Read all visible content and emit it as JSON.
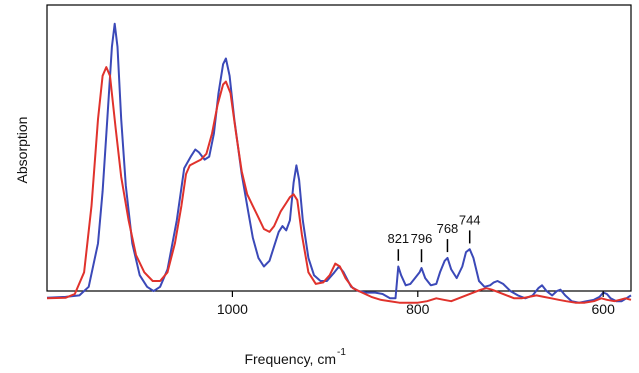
{
  "chart_data": {
    "type": "line",
    "title": "",
    "xlabel": "Frequency, cm",
    "xlabel_superscript": "-1",
    "ylabel": "Absorption",
    "x_reversed": true,
    "xlim": [
      1200,
      570
    ],
    "ylim": [
      0,
      1
    ],
    "grid": false,
    "legend": "none",
    "x_ticks": [
      1000,
      800,
      600
    ],
    "series": [
      {
        "color": "#3b49b8",
        "points": [
          [
            1200,
            0.032
          ],
          [
            1180,
            0.035
          ],
          [
            1165,
            0.04
          ],
          [
            1155,
            0.07
          ],
          [
            1145,
            0.22
          ],
          [
            1140,
            0.4
          ],
          [
            1135,
            0.65
          ],
          [
            1130,
            0.9
          ],
          [
            1127,
            0.98
          ],
          [
            1124,
            0.9
          ],
          [
            1120,
            0.65
          ],
          [
            1115,
            0.42
          ],
          [
            1108,
            0.22
          ],
          [
            1100,
            0.11
          ],
          [
            1092,
            0.07
          ],
          [
            1085,
            0.055
          ],
          [
            1078,
            0.07
          ],
          [
            1070,
            0.13
          ],
          [
            1060,
            0.3
          ],
          [
            1052,
            0.48
          ],
          [
            1045,
            0.52
          ],
          [
            1040,
            0.545
          ],
          [
            1036,
            0.535
          ],
          [
            1030,
            0.51
          ],
          [
            1025,
            0.52
          ],
          [
            1020,
            0.6
          ],
          [
            1015,
            0.74
          ],
          [
            1010,
            0.84
          ],
          [
            1007,
            0.86
          ],
          [
            1003,
            0.8
          ],
          [
            998,
            0.65
          ],
          [
            990,
            0.46
          ],
          [
            983,
            0.33
          ],
          [
            978,
            0.24
          ],
          [
            972,
            0.17
          ],
          [
            966,
            0.14
          ],
          [
            960,
            0.16
          ],
          [
            955,
            0.21
          ],
          [
            950,
            0.26
          ],
          [
            946,
            0.28
          ],
          [
            942,
            0.265
          ],
          [
            938,
            0.3
          ],
          [
            934,
            0.43
          ],
          [
            931,
            0.49
          ],
          [
            928,
            0.44
          ],
          [
            924,
            0.3
          ],
          [
            918,
            0.17
          ],
          [
            912,
            0.11
          ],
          [
            905,
            0.09
          ],
          [
            898,
            0.09
          ],
          [
            890,
            0.12
          ],
          [
            885,
            0.14
          ],
          [
            880,
            0.12
          ],
          [
            872,
            0.07
          ],
          [
            864,
            0.055
          ],
          [
            855,
            0.05
          ],
          [
            846,
            0.05
          ],
          [
            838,
            0.045
          ],
          [
            830,
            0.03
          ],
          [
            824,
            0.03
          ],
          [
            821,
            0.14
          ],
          [
            818,
            0.11
          ],
          [
            813,
            0.075
          ],
          [
            808,
            0.08
          ],
          [
            803,
            0.1
          ],
          [
            798,
            0.12
          ],
          [
            796,
            0.135
          ],
          [
            792,
            0.1
          ],
          [
            786,
            0.075
          ],
          [
            780,
            0.08
          ],
          [
            776,
            0.12
          ],
          [
            771,
            0.16
          ],
          [
            768,
            0.17
          ],
          [
            764,
            0.13
          ],
          [
            758,
            0.1
          ],
          [
            752,
            0.14
          ],
          [
            748,
            0.19
          ],
          [
            744,
            0.2
          ],
          [
            740,
            0.17
          ],
          [
            734,
            0.09
          ],
          [
            728,
            0.07
          ],
          [
            722,
            0.075
          ],
          [
            718,
            0.085
          ],
          [
            714,
            0.09
          ],
          [
            708,
            0.08
          ],
          [
            700,
            0.055
          ],
          [
            692,
            0.04
          ],
          [
            684,
            0.03
          ],
          [
            676,
            0.04
          ],
          [
            670,
            0.065
          ],
          [
            666,
            0.075
          ],
          [
            661,
            0.055
          ],
          [
            655,
            0.04
          ],
          [
            650,
            0.055
          ],
          [
            646,
            0.06
          ],
          [
            641,
            0.04
          ],
          [
            634,
            0.02
          ],
          [
            626,
            0.015
          ],
          [
            618,
            0.02
          ],
          [
            610,
            0.025
          ],
          [
            604,
            0.035
          ],
          [
            600,
            0.05
          ],
          [
            596,
            0.045
          ],
          [
            592,
            0.03
          ],
          [
            586,
            0.02
          ],
          [
            580,
            0.02
          ],
          [
            575,
            0.03
          ],
          [
            570,
            0.04
          ]
        ]
      },
      {
        "color": "#e0322c",
        "points": [
          [
            1200,
            0.03
          ],
          [
            1180,
            0.032
          ],
          [
            1170,
            0.045
          ],
          [
            1160,
            0.12
          ],
          [
            1152,
            0.35
          ],
          [
            1145,
            0.65
          ],
          [
            1140,
            0.8
          ],
          [
            1136,
            0.83
          ],
          [
            1132,
            0.8
          ],
          [
            1126,
            0.62
          ],
          [
            1120,
            0.45
          ],
          [
            1112,
            0.3
          ],
          [
            1104,
            0.18
          ],
          [
            1095,
            0.12
          ],
          [
            1086,
            0.09
          ],
          [
            1078,
            0.09
          ],
          [
            1070,
            0.12
          ],
          [
            1062,
            0.22
          ],
          [
            1055,
            0.35
          ],
          [
            1050,
            0.46
          ],
          [
            1046,
            0.49
          ],
          [
            1040,
            0.5
          ],
          [
            1034,
            0.51
          ],
          [
            1028,
            0.53
          ],
          [
            1022,
            0.6
          ],
          [
            1016,
            0.7
          ],
          [
            1010,
            0.77
          ],
          [
            1007,
            0.78
          ],
          [
            1002,
            0.74
          ],
          [
            996,
            0.6
          ],
          [
            990,
            0.47
          ],
          [
            984,
            0.39
          ],
          [
            978,
            0.35
          ],
          [
            972,
            0.31
          ],
          [
            966,
            0.27
          ],
          [
            960,
            0.26
          ],
          [
            955,
            0.28
          ],
          [
            948,
            0.33
          ],
          [
            942,
            0.36
          ],
          [
            938,
            0.38
          ],
          [
            934,
            0.39
          ],
          [
            930,
            0.37
          ],
          [
            925,
            0.25
          ],
          [
            918,
            0.12
          ],
          [
            910,
            0.08
          ],
          [
            902,
            0.085
          ],
          [
            895,
            0.11
          ],
          [
            889,
            0.15
          ],
          [
            884,
            0.14
          ],
          [
            878,
            0.1
          ],
          [
            870,
            0.065
          ],
          [
            860,
            0.05
          ],
          [
            850,
            0.035
          ],
          [
            840,
            0.025
          ],
          [
            830,
            0.02
          ],
          [
            820,
            0.015
          ],
          [
            810,
            0.015
          ],
          [
            800,
            0.015
          ],
          [
            790,
            0.02
          ],
          [
            780,
            0.03
          ],
          [
            772,
            0.025
          ],
          [
            764,
            0.02
          ],
          [
            756,
            0.03
          ],
          [
            748,
            0.04
          ],
          [
            740,
            0.05
          ],
          [
            732,
            0.06
          ],
          [
            726,
            0.065
          ],
          [
            720,
            0.06
          ],
          [
            712,
            0.05
          ],
          [
            704,
            0.04
          ],
          [
            696,
            0.03
          ],
          [
            688,
            0.03
          ],
          [
            680,
            0.035
          ],
          [
            672,
            0.04
          ],
          [
            664,
            0.035
          ],
          [
            656,
            0.03
          ],
          [
            648,
            0.025
          ],
          [
            640,
            0.02
          ],
          [
            630,
            0.015
          ],
          [
            620,
            0.015
          ],
          [
            610,
            0.02
          ],
          [
            602,
            0.03
          ],
          [
            596,
            0.025
          ],
          [
            588,
            0.02
          ],
          [
            582,
            0.025
          ],
          [
            576,
            0.03
          ],
          [
            570,
            0.025
          ]
        ]
      }
    ],
    "annotations": [
      {
        "label": "821",
        "x": 821,
        "y_start": 0.16,
        "y_end": 0.2
      },
      {
        "label": "796",
        "x": 796,
        "y_start": 0.155,
        "y_end": 0.2
      },
      {
        "label": "768",
        "x": 768,
        "y_start": 0.19,
        "y_end": 0.235
      },
      {
        "label": "744",
        "x": 744,
        "y_start": 0.22,
        "y_end": 0.265
      }
    ]
  }
}
